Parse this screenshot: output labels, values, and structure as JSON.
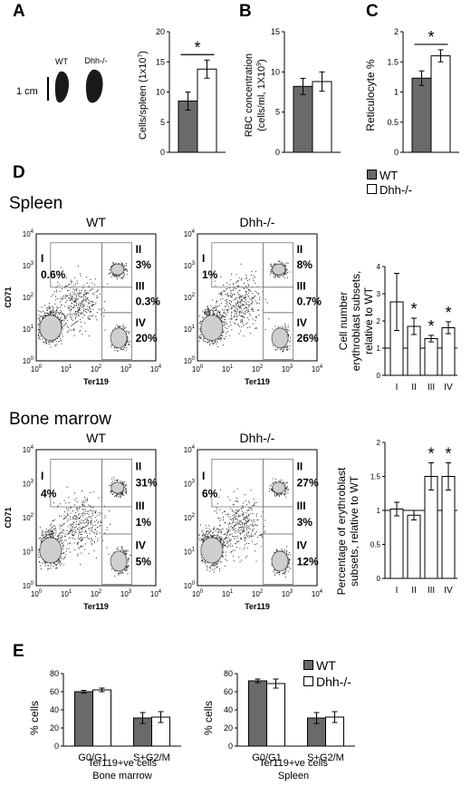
{
  "colors": {
    "wt": "#6a6a6a",
    "dhh": "#ffffff",
    "axis": "#000000",
    "ref": "#000000"
  },
  "panel_letters": [
    "A",
    "B",
    "C",
    "D",
    "E"
  ],
  "panel_a_image": {
    "genotype_labels": [
      "WT",
      "Dhh-/-"
    ],
    "scale_label": "1 cm"
  },
  "legend_top": {
    "wt": "WT",
    "dhh": "Dhh-/-"
  },
  "legend_e": {
    "wt": "WT",
    "dhh": "Dhh-/-"
  },
  "section_titles": {
    "spleen": "Spleen",
    "bone_marrow": "Bone marrow"
  },
  "flow": {
    "spleen_wt": {
      "title": "WT",
      "gates": [
        "I",
        "II",
        "III",
        "IV"
      ],
      "percents": [
        "0.6%",
        "3%",
        "0.3%",
        "20%"
      ],
      "ylabel": "CD71",
      "xlabel": "Ter119"
    },
    "spleen_dhh": {
      "title": "Dhh-/-",
      "gates": [
        "I",
        "II",
        "III",
        "IV"
      ],
      "percents": [
        "1%",
        "8%",
        "0.7%",
        "26%"
      ],
      "ylabel": "",
      "xlabel": "Ter119"
    },
    "bm_wt": {
      "title": "WT",
      "gates": [
        "I",
        "II",
        "III",
        "IV"
      ],
      "percents": [
        "4%",
        "31%",
        "1%",
        "5%"
      ],
      "ylabel": "CD71",
      "xlabel": "Ter119"
    },
    "bm_dhh": {
      "title": "Dhh-/-",
      "gates": [
        "I",
        "II",
        "III",
        "IV"
      ],
      "percents": [
        "6%",
        "27%",
        "3%",
        "12%"
      ],
      "ylabel": "",
      "xlabel": "Ter119"
    },
    "axis_ticks": {
      "base": "10",
      "exps": [
        "0",
        "1",
        "2",
        "3",
        "4"
      ]
    }
  },
  "chart_data": [
    {
      "id": "A",
      "type": "bar",
      "categories": [
        "WT",
        "Dhh-/-"
      ],
      "values": [
        8.5,
        13.8
      ],
      "errors": [
        1.5,
        1.5
      ],
      "ylabel_main": "Cells/spleen (1x10",
      "ylabel_sup": "7",
      "ylabel_end": ")",
      "ylim": [
        0,
        20
      ],
      "yticks": [
        "0",
        "5",
        "10",
        "15",
        "20"
      ],
      "significance": "*"
    },
    {
      "id": "B",
      "type": "bar",
      "categories": [
        "WT",
        "Dhh-/-"
      ],
      "values": [
        8.2,
        8.8
      ],
      "errors": [
        1.0,
        1.2
      ],
      "ylabel_line1": "RBC concentration",
      "ylabel_line2_main": "(cells/ml, 1X10",
      "ylabel_line2_sup": "9",
      "ylabel_line2_end": ")",
      "ylim": [
        0,
        15
      ],
      "yticks": [
        "0",
        "5",
        "10",
        "15"
      ]
    },
    {
      "id": "C",
      "type": "bar",
      "categories": [
        "WT",
        "Dhh-/-"
      ],
      "values": [
        1.23,
        1.6
      ],
      "errors": [
        0.12,
        0.1
      ],
      "ylabel": "Reticulocyte %",
      "ylim": [
        0,
        2
      ],
      "yticks": [
        "0",
        "0.5",
        "1",
        "1.5",
        "2"
      ],
      "significance": "*"
    },
    {
      "id": "D-spleen",
      "type": "bar",
      "categories": [
        "I",
        "II",
        "III",
        "IV"
      ],
      "values": [
        2.7,
        1.8,
        1.35,
        1.75
      ],
      "errors": [
        1.05,
        0.3,
        0.12,
        0.22
      ],
      "ylabel_line1": "Cell number",
      "ylabel_line2": "erythroblast subsets,",
      "ylabel_line3": "relative to WT",
      "ylim": [
        0,
        4
      ],
      "yticks": [
        "0",
        "1",
        "2",
        "3",
        "4"
      ],
      "reference_line": 1,
      "significance": [
        "",
        "*",
        "*",
        "*"
      ]
    },
    {
      "id": "D-bm",
      "type": "bar",
      "categories": [
        "I",
        "II",
        "III",
        "IV"
      ],
      "values": [
        1.02,
        0.93,
        1.5,
        1.5
      ],
      "errors": [
        0.1,
        0.07,
        0.2,
        0.2
      ],
      "ylabel_line1": "Percentage of erythroblast",
      "ylabel_line2": "subsets, relative to WT",
      "ylim": [
        0,
        2
      ],
      "yticks": [
        "0",
        "0.5",
        "1",
        "1.5",
        "2"
      ],
      "reference_line": 1,
      "significance": [
        "",
        "",
        "*",
        "*"
      ]
    },
    {
      "id": "E-bm",
      "type": "bar",
      "categories": [
        "G0/G1",
        "S+G2/M"
      ],
      "series": [
        {
          "name": "WT",
          "values": [
            60,
            31
          ]
        },
        {
          "name": "Dhh-/-",
          "values": [
            62,
            32
          ]
        }
      ],
      "errors": [
        [
          1.5,
          6
        ],
        [
          2,
          6
        ]
      ],
      "ylabel": "% cells",
      "ylim": [
        0,
        80
      ],
      "yticks": [
        "0",
        "20",
        "40",
        "60",
        "80"
      ],
      "caption_line1": "Ter119+ve cells",
      "caption_line2": "Bone marrow"
    },
    {
      "id": "E-spleen",
      "type": "bar",
      "categories": [
        "G0/G1",
        "S+G2/M"
      ],
      "series": [
        {
          "name": "WT",
          "values": [
            72,
            31
          ]
        },
        {
          "name": "Dhh-/-",
          "values": [
            69,
            32
          ]
        }
      ],
      "errors": [
        [
          2,
          6
        ],
        [
          5,
          6
        ]
      ],
      "ylabel": "% cells",
      "ylim": [
        0,
        80
      ],
      "yticks": [
        "0",
        "20",
        "40",
        "60",
        "80"
      ],
      "caption_line1": "Ter119+ve cells",
      "caption_line2": "Spleen"
    }
  ]
}
